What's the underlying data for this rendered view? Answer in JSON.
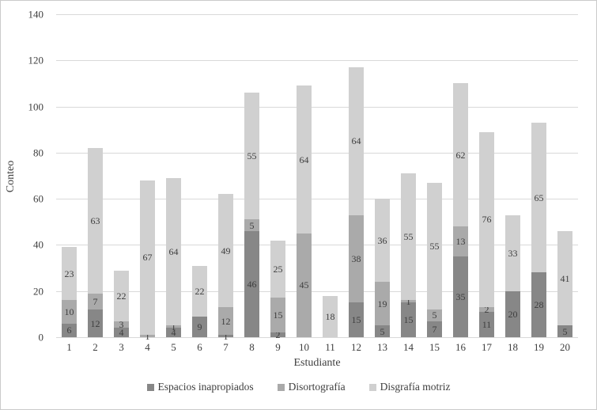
{
  "chart_data": {
    "type": "bar",
    "stacked": true,
    "title": "",
    "xlabel": "Estudiante",
    "ylabel": "Conteo",
    "ylim": [
      0,
      140
    ],
    "yticks": [
      0,
      20,
      40,
      60,
      80,
      100,
      120,
      140
    ],
    "grid": true,
    "legend_position": "bottom",
    "categories": [
      "1",
      "2",
      "3",
      "4",
      "5",
      "6",
      "7",
      "8",
      "9",
      "10",
      "11",
      "12",
      "13",
      "14",
      "15",
      "16",
      "17",
      "18",
      "19",
      "20"
    ],
    "series": [
      {
        "name": "Espacios inapropiados",
        "color": "#878787",
        "values": [
          6,
          12,
          4,
          0,
          4,
          9,
          1,
          46,
          2,
          0,
          0,
          15,
          5,
          15,
          7,
          35,
          11,
          20,
          28,
          5
        ]
      },
      {
        "name": "Disortografía",
        "color": "#aaaaaa",
        "values": [
          10,
          7,
          3,
          1,
          1,
          0,
          12,
          5,
          15,
          45,
          0,
          38,
          19,
          1,
          5,
          13,
          2,
          0,
          0,
          0
        ]
      },
      {
        "name": "Disgrafía motriz",
        "color": "#d0d0d0",
        "values": [
          23,
          63,
          22,
          67,
          64,
          22,
          49,
          55,
          25,
          64,
          18,
          64,
          36,
          55,
          55,
          62,
          76,
          33,
          65,
          41
        ]
      }
    ],
    "totals": [
      39,
      82,
      29,
      68,
      69,
      31,
      62,
      106,
      42,
      109,
      18,
      117,
      60,
      71,
      67,
      110,
      89,
      53,
      93,
      46
    ],
    "label_rule": "segment values shown centered inside segments; zero values unlabeled"
  },
  "style": {
    "gridline_color": "#d9d9d9",
    "text_color": "#3e3e3e",
    "background": "#ffffff",
    "border_color": "#cbcbcb"
  }
}
